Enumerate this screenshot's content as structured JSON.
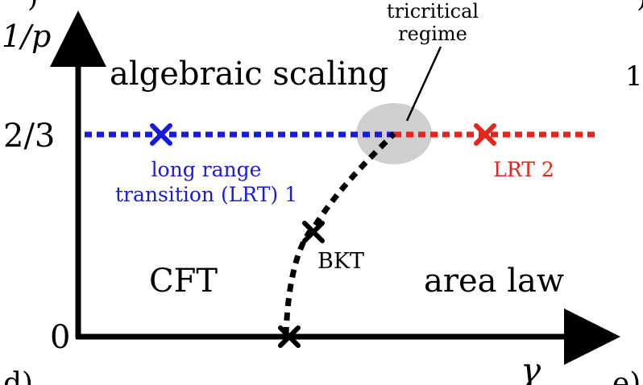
{
  "axes": {
    "y_label": "1/p",
    "x_label": "γ",
    "y_tick_top": "2/3",
    "y_tick_zero": "0"
  },
  "regions": {
    "top": "algebraic scaling",
    "bottom_left": "CFT",
    "bottom_right": "area law"
  },
  "points": {
    "lrt1_label_line1": "long range",
    "lrt1_label_line2": "transition (LRT) 1",
    "lrt2_label": "LRT 2",
    "bkt_label": "BKT"
  },
  "annotation": {
    "line1": "tricritical",
    "line2": "regime"
  },
  "panel_labels": {
    "left_partial": ")",
    "right_partial_top": ")",
    "right_partial_digit": "1",
    "bottom_left": "d)",
    "bottom_right": "e)"
  },
  "colors": {
    "blue": "#1a1adb",
    "red": "#e3261e",
    "black": "#000000",
    "ellipse": "#cfcfcf"
  }
}
